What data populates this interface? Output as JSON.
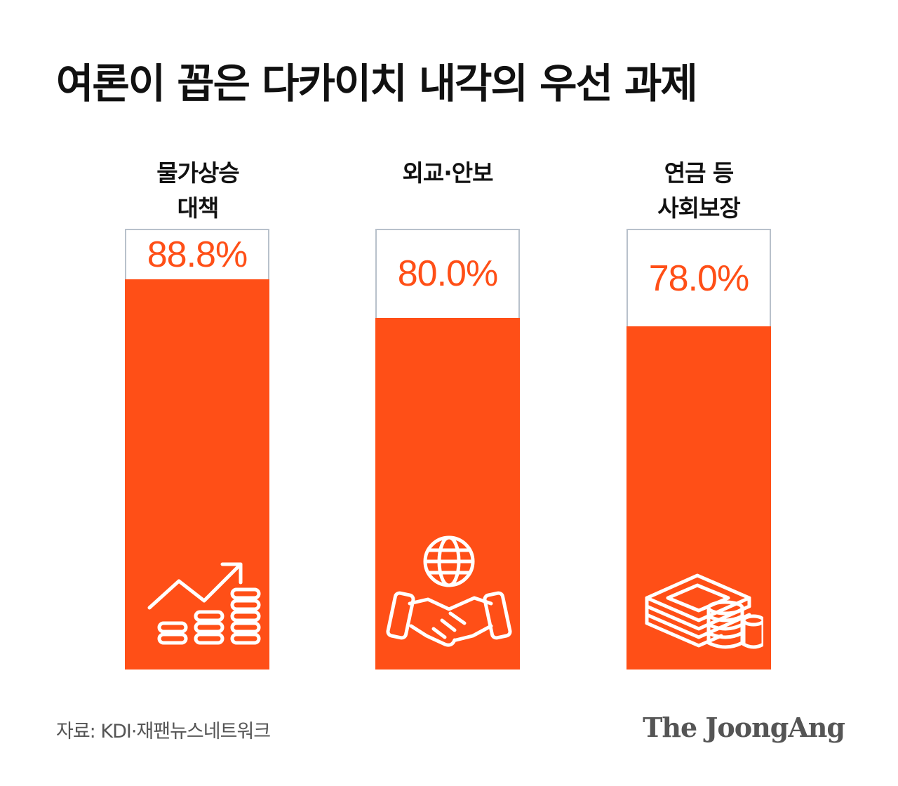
{
  "title": "여론이 꼽은 다카이치 내각의 우선 과제",
  "chart_data": {
    "type": "bar",
    "categories": [
      "물가상승\n대책",
      "외교·안보",
      "연금 등\n사회보장"
    ],
    "values": [
      88.8,
      80.0,
      78.0
    ],
    "value_labels": [
      "88.8%",
      "80.0%",
      "78.0%"
    ],
    "ylim": [
      0,
      100
    ],
    "icons": [
      "rising-chart-coins-icon",
      "globe-handshake-icon",
      "cash-stack-coins-icon"
    ],
    "colors": {
      "bar": "#ff4f17",
      "frame": "#b8c1cb",
      "value_text": "#ff4f17"
    }
  },
  "footer": {
    "source": "자료: KDI·재팬뉴스네트워크",
    "brand": "The JoongAng"
  }
}
